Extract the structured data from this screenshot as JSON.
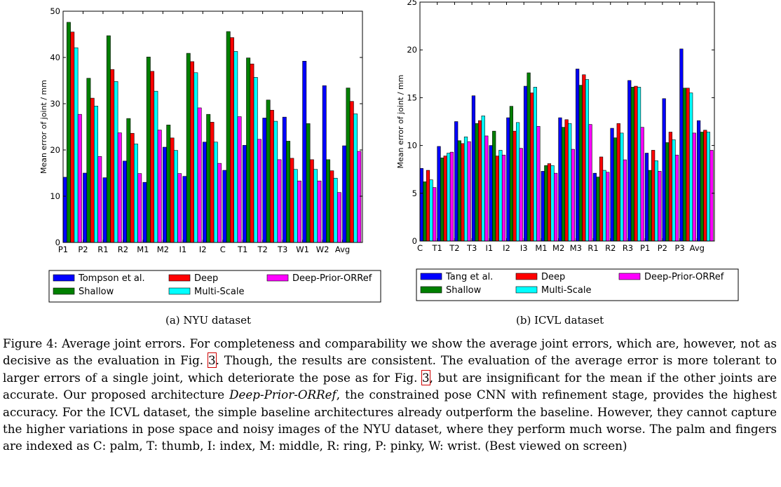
{
  "chart_data": [
    {
      "type": "bar",
      "ylabel": "Mean error of joint / mm",
      "ylim": [
        0,
        50
      ],
      "yticks": [
        0,
        10,
        20,
        30,
        40,
        50
      ],
      "categories": [
        "P1",
        "P2",
        "R1",
        "R2",
        "M1",
        "M2",
        "I1",
        "I2",
        "C",
        "T1",
        "T2",
        "T3",
        "W1",
        "W2",
        "Avg"
      ],
      "legend_position": "below plot",
      "series": [
        {
          "name": "Tompson et al.",
          "color": "#0000ff",
          "values": [
            14.1,
            15.0,
            14.0,
            17.6,
            13.0,
            20.6,
            14.3,
            21.7,
            15.6,
            21.0,
            26.9,
            27.1,
            39.2,
            33.9,
            20.9
          ]
        },
        {
          "name": "Shallow",
          "color": "#008000",
          "values": [
            47.6,
            35.5,
            44.7,
            26.8,
            40.1,
            25.4,
            40.9,
            27.7,
            45.6,
            39.9,
            30.8,
            21.9,
            25.7,
            17.9,
            33.4
          ]
        },
        {
          "name": "Deep",
          "color": "#ff0000",
          "values": [
            45.5,
            31.2,
            37.4,
            23.6,
            37.0,
            22.6,
            39.1,
            26.0,
            44.3,
            38.6,
            28.6,
            18.2,
            17.9,
            15.5,
            30.5
          ]
        },
        {
          "name": "Multi-Scale",
          "color": "#00ffff",
          "values": [
            42.1,
            29.5,
            34.8,
            21.3,
            32.7,
            19.9,
            36.7,
            21.7,
            41.3,
            35.7,
            26.2,
            15.8,
            15.8,
            13.9,
            27.8
          ]
        },
        {
          "name": "Deep-Prior-ORRef",
          "color": "#ff00ff",
          "values": [
            27.7,
            18.6,
            23.7,
            14.9,
            24.3,
            14.9,
            29.1,
            17.1,
            27.2,
            22.3,
            17.9,
            13.3,
            13.3,
            10.8,
            19.7
          ]
        }
      ]
    },
    {
      "type": "bar",
      "ylabel": "Mean error of joint / mm",
      "ylim": [
        0,
        25
      ],
      "yticks": [
        0,
        5,
        10,
        15,
        20,
        25
      ],
      "categories": [
        "C",
        "T1",
        "T2",
        "T3",
        "I1",
        "I2",
        "I3",
        "M1",
        "M2",
        "M3",
        "R1",
        "R2",
        "R3",
        "P1",
        "P2",
        "P3",
        "Avg"
      ],
      "legend_position": "below plot",
      "series": [
        {
          "name": "Tang et al.",
          "color": "#0000ff",
          "values": [
            7.6,
            9.9,
            12.5,
            15.2,
            10.0,
            12.9,
            16.2,
            7.3,
            12.9,
            18.0,
            7.1,
            11.8,
            16.8,
            9.2,
            14.9,
            20.1,
            12.6
          ]
        },
        {
          "name": "Shallow",
          "color": "#008000",
          "values": [
            6.2,
            8.7,
            10.5,
            12.3,
            11.5,
            14.1,
            17.6,
            7.9,
            11.9,
            16.3,
            6.7,
            10.8,
            16.1,
            7.4,
            10.3,
            16.0,
            11.4
          ]
        },
        {
          "name": "Deep",
          "color": "#ff0000",
          "values": [
            7.4,
            8.9,
            10.2,
            12.6,
            8.9,
            11.5,
            15.5,
            8.1,
            12.7,
            17.4,
            8.8,
            12.3,
            16.2,
            9.5,
            11.4,
            16.0,
            11.6
          ]
        },
        {
          "name": "Multi-Scale",
          "color": "#00ffff",
          "values": [
            6.4,
            9.2,
            10.9,
            13.1,
            9.5,
            12.4,
            16.1,
            7.9,
            12.3,
            16.9,
            7.4,
            11.3,
            16.1,
            8.4,
            10.6,
            15.5,
            11.4
          ]
        },
        {
          "name": "Deep-Prior-ORRef",
          "color": "#ff00ff",
          "values": [
            5.6,
            9.3,
            10.4,
            11.0,
            9.0,
            9.7,
            12.0,
            7.1,
            9.6,
            12.2,
            7.2,
            8.5,
            11.9,
            7.3,
            9.0,
            11.3,
            9.5
          ]
        }
      ]
    }
  ],
  "subcaptions": {
    "nyu": "(a) NYU dataset",
    "icvl": "(b) ICVL dataset"
  },
  "caption": {
    "p1": "Figure 4: Average joint errors. For completeness and comparability we show the average joint errors, which are, however, not as decisive as the evaluation in Fig. ",
    "ref1": "3",
    "p2": ". Though, the results are consistent. The evaluation of the average error is more tolerant to larger errors of a single joint, which deteriorate the pose as for Fig. ",
    "ref2": "3",
    "p3": ", but are insignificant for the mean if the other joints are accurate. Our proposed architecture ",
    "method": "Deep-Prior-ORRef",
    "p4": ", the constrained pose CNN with refinement stage, provides the highest accuracy. For the ICVL dataset, the simple baseline architectures already outperform the baseline. However, they cannot capture the higher variations in pose space and noisy images of the NYU dataset, where they perform much worse. The palm and fingers are indexed as C: palm, T: thumb, I: index, M: middle, R: ring, P: pinky, W: wrist. (Best viewed on screen)"
  }
}
